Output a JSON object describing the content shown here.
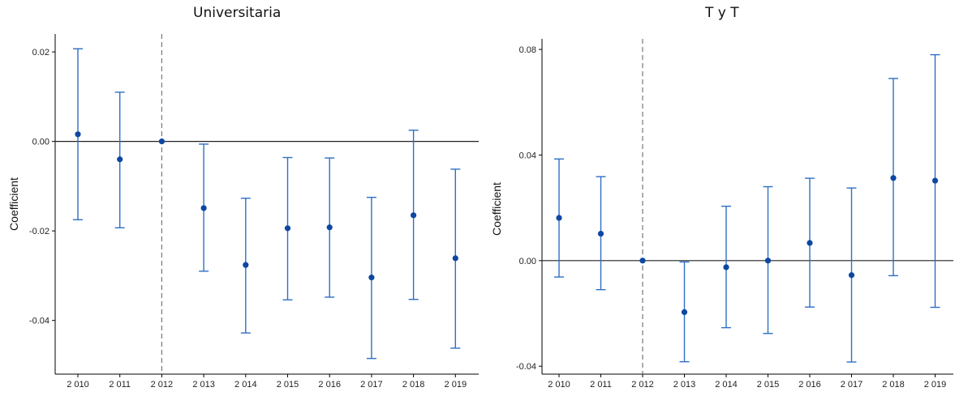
{
  "chart_data": [
    {
      "type": "scatter",
      "title": "Universitaria",
      "xlabel": "",
      "ylabel": "Coefficient",
      "categories": [
        "2010",
        "2011",
        "2012",
        "2013",
        "2014",
        "2015",
        "2016",
        "2017",
        "2018",
        "2019"
      ],
      "x_tick_labels": [
        "2 010",
        "2 011",
        "2 012",
        "2 013",
        "2 014",
        "2 015",
        "2 016",
        "2 017",
        "2 018",
        "2 019"
      ],
      "y_ticks": [
        -0.04,
        -0.02,
        0.0,
        0.02
      ],
      "y_tick_labels": [
        "-0.04",
        "-0.02",
        "0.00",
        "0.02"
      ],
      "ylim": [
        -0.052,
        0.024
      ],
      "reference_hline": 0.0,
      "reference_vline_category": "2012",
      "series": [
        {
          "values": [
            0.0016,
            -0.004,
            0.0,
            -0.0149,
            -0.0276,
            -0.0194,
            -0.0192,
            -0.0304,
            -0.0165,
            -0.0261
          ],
          "lower": [
            -0.0175,
            -0.0193,
            0.0,
            -0.029,
            -0.0428,
            -0.0354,
            -0.0348,
            -0.0485,
            -0.0353,
            -0.0462
          ],
          "upper": [
            0.0207,
            0.011,
            0.0,
            -0.0006,
            -0.0127,
            -0.0036,
            -0.0037,
            -0.0125,
            0.0025,
            -0.0062
          ]
        }
      ],
      "grid": false,
      "colors": {
        "point": "#0d47a1",
        "errorbar": "#2f6fc4",
        "refline": "#777777"
      }
    },
    {
      "type": "scatter",
      "title": "T y T",
      "xlabel": "",
      "ylabel": "Coefficient",
      "categories": [
        "2010",
        "2011",
        "2012",
        "2013",
        "2014",
        "2015",
        "2016",
        "2017",
        "2018",
        "2019"
      ],
      "x_tick_labels": [
        "2 010",
        "2 011",
        "2 012",
        "2 013",
        "2 014",
        "2 015",
        "2 016",
        "2 017",
        "2 018",
        "2 019"
      ],
      "y_ticks": [
        -0.04,
        0.0,
        0.04,
        0.08
      ],
      "y_tick_labels": [
        "-0.04",
        "0.00",
        "0.04",
        "0.08"
      ],
      "ylim": [
        -0.043,
        0.084
      ],
      "reference_hline": 0.0,
      "reference_vline_category": "2012",
      "series": [
        {
          "values": [
            0.0162,
            0.0102,
            0.0,
            -0.0195,
            -0.0025,
            0.0,
            0.0067,
            -0.0055,
            0.0313,
            0.0303
          ],
          "lower": [
            -0.0062,
            -0.011,
            0.0,
            -0.0383,
            -0.0254,
            -0.0276,
            -0.0176,
            -0.0384,
            -0.0057,
            -0.0177
          ],
          "upper": [
            0.0385,
            0.0318,
            0.0,
            -0.0005,
            0.0206,
            0.028,
            0.0312,
            0.0275,
            0.069,
            0.078
          ]
        }
      ],
      "grid": false,
      "colors": {
        "point": "#0d47a1",
        "errorbar": "#2f6fc4",
        "refline": "#777777"
      }
    }
  ]
}
